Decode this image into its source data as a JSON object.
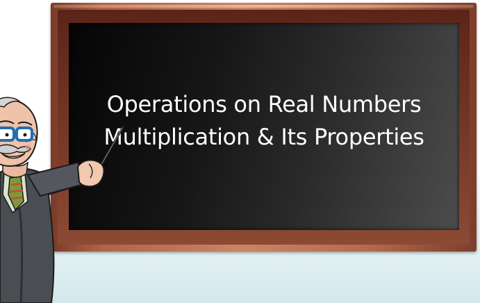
{
  "slide": {
    "title_line_1": "Operations on Real Numbers",
    "title_line_2": "Multiplication & Its Properties"
  },
  "illustration": {
    "icon": "teacher-with-pointer-icon"
  },
  "colors": {
    "board_dark": "#050505",
    "board_light": "#4c4c4c",
    "frame_wood": "#b06448",
    "text": "#ffffff"
  }
}
